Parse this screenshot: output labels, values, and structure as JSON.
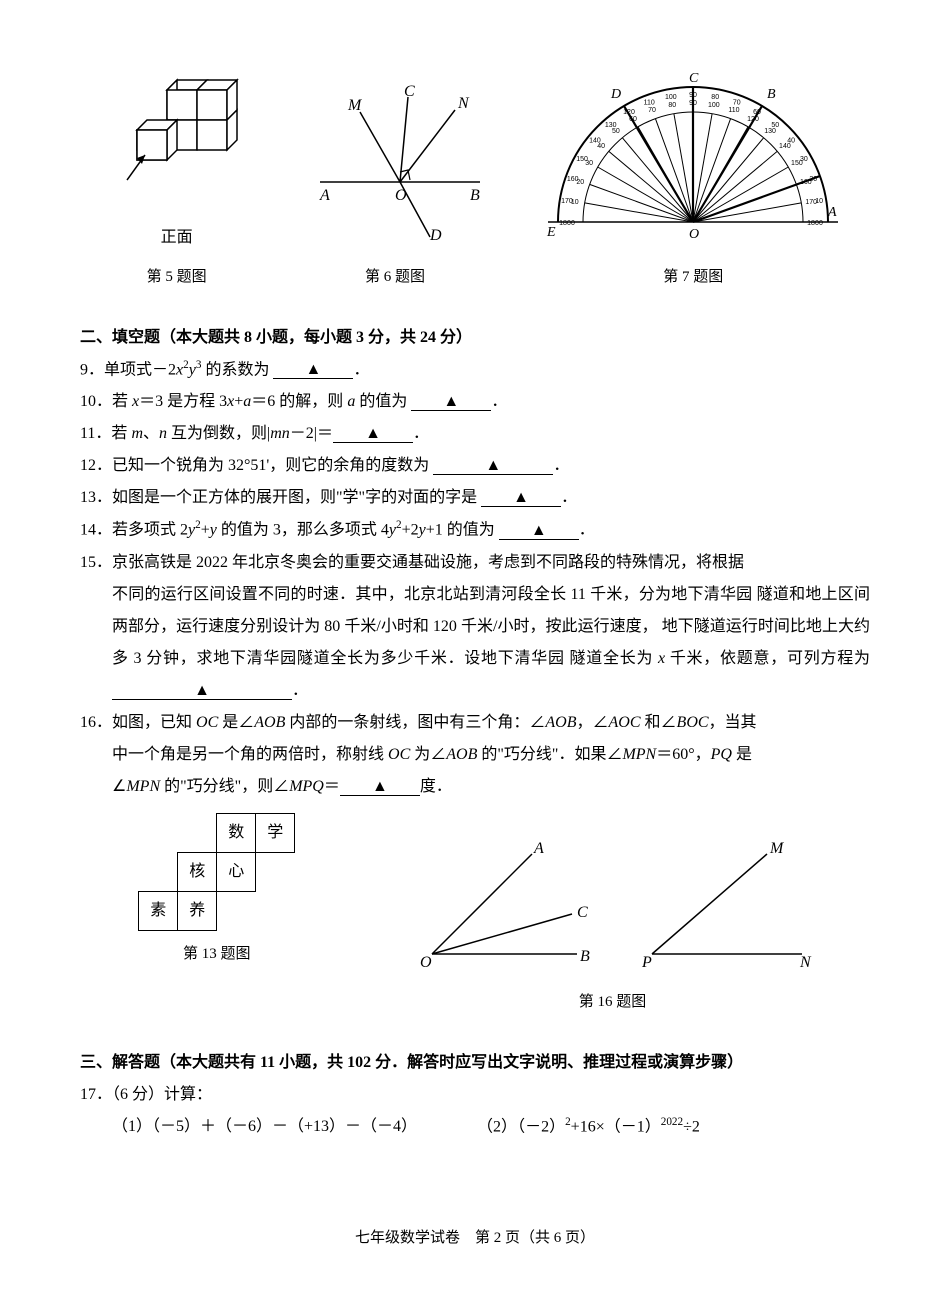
{
  "figcaptions": {
    "f5": "第 5 题图",
    "f6": "第 6 题图",
    "f7": "第 7 题图",
    "f13": "第 13 题图",
    "f16": "第 16 题图"
  },
  "fig5": {
    "front_label": "正面"
  },
  "fig6": {
    "labels": {
      "A": "A",
      "B": "B",
      "O": "O",
      "M": "M",
      "N": "N",
      "C": "C",
      "D": "D"
    }
  },
  "fig7": {
    "labels": {
      "A": "A",
      "B": "B",
      "C": "C",
      "D": "D",
      "E": "E",
      "O": "O"
    }
  },
  "section2": {
    "title": "二、填空题（本大题共 8 小题，每小题 3 分，共 24 分）"
  },
  "q9": {
    "num": "9．",
    "pre": "单项式－2",
    "var1": "x",
    "sup1": "2",
    "var2": "y",
    "sup2": "3",
    "post": " 的系数为 ",
    "tri": "▲",
    "end": "．"
  },
  "q10": {
    "num": "10．",
    "t1": "若 ",
    "x": "x",
    "t2": "＝3 是方程 3",
    "x2": "x",
    "t3": "+",
    "a": "a",
    "t4": "＝6 的解，则 ",
    "a2": "a",
    "t5": " 的值为 ",
    "tri": "▲",
    "end": "．"
  },
  "q11": {
    "num": "11．",
    "t1": "若 ",
    "m": "m",
    "sep": "、",
    "n": "n",
    "t2": " 互为倒数，则|",
    "mn": "mn",
    "t3": "－2|＝",
    "tri": "▲",
    "end": "．"
  },
  "q12": {
    "num": "12．",
    "text": "已知一个锐角为 32°51'，则它的余角的度数为 ",
    "tri": "▲",
    "end": "．"
  },
  "q13": {
    "num": "13．",
    "text": "如图是一个正方体的展开图，则\"学\"字的对面的字是 ",
    "tri": "▲",
    "end": "．"
  },
  "q14": {
    "num": "14．",
    "t1": "若多项式 2",
    "y": "y",
    "sup": "2",
    "t2": "+",
    "y2": "y",
    "t3": " 的值为 3，那么多项式 4",
    "y3": "y",
    "sup2": "2",
    "t4": "+2",
    "y4": "y",
    "t5": "+1 的值为 ",
    "tri": "▲",
    "end": "．"
  },
  "q15": {
    "num": "15．",
    "l1": "京张高铁是 2022 年北京冬奥会的重要交通基础设施，考虑到不同路段的特殊情况，将根据",
    "l2": "不同的运行区间设置不同的时速．其中，北京北站到清河段全长 11 千米，分为地下清华园",
    "l3": "隧道和地上区间两部分，运行速度分别设计为 80 千米/小时和 120 千米/小时，按此运行速度，",
    "l4": "地下隧道运行时间比地上大约多 3 分钟，求地下清华园隧道全长为多少千米．设地下清华园",
    "l5a": "隧道全长为 ",
    "x": "x",
    "l5b": " 千米，依题意，可列方程为",
    "tri": "▲",
    "end": "．"
  },
  "q16": {
    "num": "16．",
    "t1": "如图，已知 ",
    "oc": "OC",
    "t2": " 是∠",
    "aob": "AOB",
    "t3": " 内部的一条射线，图中有三个角：∠",
    "aob2": "AOB",
    "t4": "，∠",
    "aoc": "AOC",
    "t5": " 和∠",
    "boc": "BOC",
    "t6": "，当其",
    "l2a": "中一个角是另一个角的两倍时，称射线 ",
    "oc2": "OC",
    "l2b": " 为∠",
    "aob3": "AOB",
    "l2c": " 的\"巧分线\"．如果∠",
    "mpn": "MPN",
    "l2d": "＝60°，",
    "pq": "PQ",
    "l2e": " 是",
    "l3a": "∠",
    "mpn2": "MPN",
    "l3b": " 的\"巧分线\"，则∠",
    "mpq": "MPQ",
    "l3c": "＝",
    "tri": "▲",
    "l3d": "度．"
  },
  "net": {
    "c1": "数",
    "c2": "学",
    "c3": "核",
    "c4": "心",
    "c5": "素",
    "c6": "养"
  },
  "fig16b": {
    "O": "O",
    "A": "A",
    "B": "B",
    "C": "C",
    "M": "M",
    "P": "P",
    "N": "N"
  },
  "section3": {
    "title": "三、解答题（本大题共有 11 小题，共 102 分．解答时应写出文字说明、推理过程或演算步骤）"
  },
  "q17": {
    "num": "17．",
    "pts": "（6 分）计算：",
    "sub1_label": "（1）",
    "sub1": "（－5）＋（－6）－（+13）－（－4）",
    "sub2_label": "（2）",
    "sub2a": "（－2）",
    "sup1": "2",
    "sub2b": "+16×（－1）",
    "sup2": "2022",
    "sub2c": "÷2"
  },
  "footer": {
    "text": "七年级数学试卷　第 2 页（共 6 页）"
  }
}
